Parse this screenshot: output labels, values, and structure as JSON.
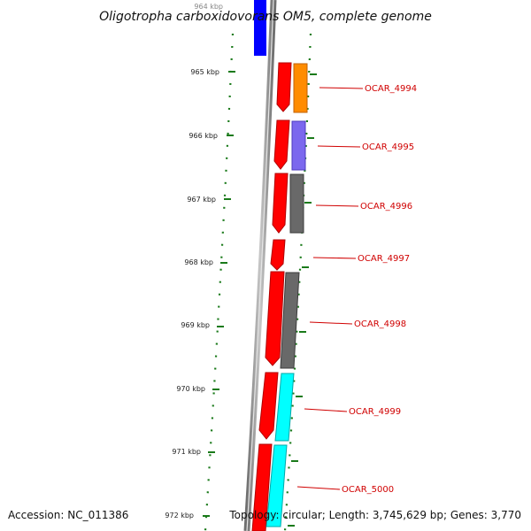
{
  "map": {
    "title": "Oligotropha carboxidovorans OM5, complete genome",
    "accession": "Accession: NC_011386",
    "topology": "Topology: circular; Length: 3,745,629 bp; Genes: 3,770"
  },
  "ticks": [
    {
      "label": "964 kbp"
    },
    {
      "label": "965 kbp"
    },
    {
      "label": "966 kbp"
    },
    {
      "label": "967 kbp"
    },
    {
      "label": "968 kbp"
    },
    {
      "label": "969 kbp"
    },
    {
      "label": "970 kbp"
    },
    {
      "label": "971 kbp"
    },
    {
      "label": "972 kbp"
    }
  ],
  "genes": [
    {
      "label": "OCAR_4994",
      "color": "#ff8c00"
    },
    {
      "label": "OCAR_4995",
      "color": "#7b68ee"
    },
    {
      "label": "OCAR_4996",
      "color": "#696969"
    },
    {
      "label": "OCAR_4997",
      "color": "#ffffff"
    },
    {
      "label": "OCAR_4998",
      "color": "#696969"
    },
    {
      "label": "OCAR_4999",
      "color": "#00ffff"
    },
    {
      "label": "OCAR_5000",
      "color": "#00ffff"
    }
  ],
  "colors": {
    "cds": "#ff0000",
    "leading_feature": "#0000ff",
    "backbone": "#8a8a8a",
    "gc_skew": "#1a7a1a",
    "label": "#d00000"
  }
}
